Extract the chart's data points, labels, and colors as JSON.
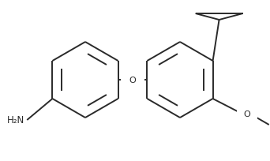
{
  "bg_color": "#ffffff",
  "line_color": "#2a2a2a",
  "line_width": 1.4,
  "figsize": [
    3.42,
    2.05
  ],
  "dpi": 100,
  "r1x": 0.28,
  "r1y": 0.5,
  "r2x": 0.63,
  "r2y": 0.5,
  "ring_r": 0.155,
  "nh2_text": "H₂N",
  "o_bridge_text": "O",
  "o_methoxy_text": "O"
}
